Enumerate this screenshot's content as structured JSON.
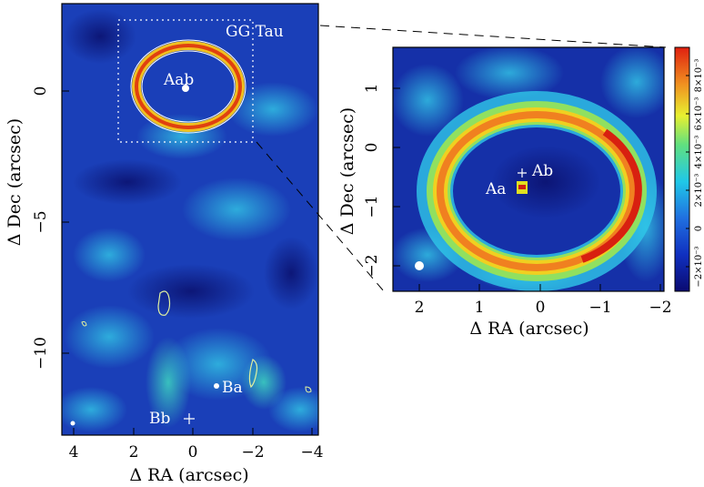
{
  "left_panel": {
    "object_label": "GG Tau",
    "source_labels": {
      "aab": "Aab",
      "ba": "Ba",
      "bb": "Bb"
    },
    "x_axis": {
      "label": "Δ RA (arcsec)",
      "ticks": [
        "4",
        "2",
        "0",
        "−2",
        "−4"
      ]
    },
    "y_axis": {
      "label": "Δ Dec (arcsec)",
      "ticks": [
        "0",
        "−5",
        "−10"
      ]
    }
  },
  "right_panel": {
    "source_labels": {
      "aa": "Aa",
      "ab": "Ab"
    },
    "x_axis": {
      "label": "Δ RA (arcsec)",
      "ticks": [
        "2",
        "1",
        "0",
        "−1",
        "−2"
      ]
    },
    "y_axis": {
      "label": "Δ Dec (arcsec)",
      "ticks": [
        "1",
        "0",
        "−1",
        "−2"
      ]
    }
  },
  "colorbar": {
    "ticks": [
      "−2×10⁻³",
      "0",
      "2×10⁻³",
      "4×10⁻³",
      "6×10⁻³",
      "8×10⁻³"
    ],
    "colors": {
      "low": "#0a1a8c",
      "mid": "#20c8e8",
      "high": "#e02010"
    }
  }
}
